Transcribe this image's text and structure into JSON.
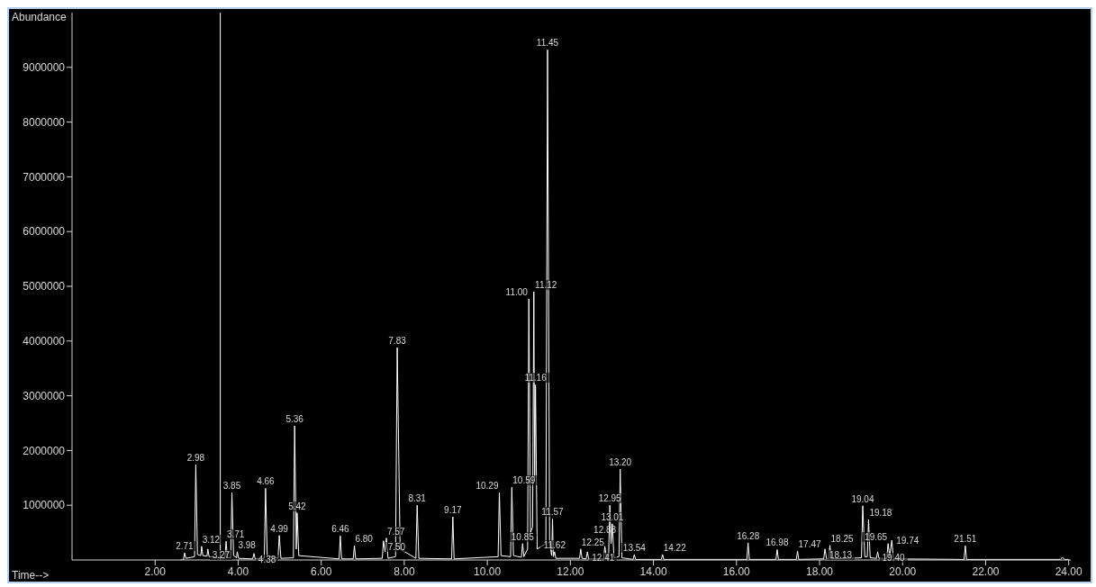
{
  "chart_data": {
    "type": "line",
    "xlabel": "Time-->",
    "ylabel": "Abundance",
    "marker": "none",
    "x": [
      2.6,
      2.68,
      2.71,
      2.74,
      2.95,
      2.98,
      3.02,
      3.1,
      3.12,
      3.15,
      3.25,
      3.27,
      3.3,
      3.68,
      3.71,
      3.74,
      3.82,
      3.85,
      3.89,
      3.96,
      3.98,
      4.01,
      4.35,
      4.38,
      4.41,
      4.63,
      4.66,
      4.7,
      4.96,
      4.99,
      5.03,
      5.33,
      5.36,
      5.4,
      5.42,
      5.46,
      6.43,
      6.46,
      6.49,
      6.77,
      6.8,
      6.83,
      7.47,
      7.5,
      7.54,
      7.57,
      7.61,
      7.79,
      7.83,
      7.9,
      8.28,
      8.31,
      8.35,
      9.14,
      9.17,
      9.2,
      10.26,
      10.29,
      10.33,
      10.56,
      10.59,
      10.63,
      10.82,
      10.85,
      10.88,
      10.97,
      11.0,
      11.04,
      11.09,
      11.12,
      11.14,
      11.16,
      11.2,
      11.41,
      11.45,
      11.5,
      11.55,
      11.57,
      11.59,
      11.62,
      11.65,
      12.22,
      12.25,
      12.28,
      12.38,
      12.41,
      12.44,
      12.8,
      12.83,
      12.87,
      12.92,
      12.95,
      12.98,
      13.01,
      13.05,
      13.17,
      13.2,
      13.24,
      13.51,
      13.54,
      13.57,
      14.19,
      14.22,
      14.25,
      16.25,
      16.28,
      16.31,
      16.95,
      16.98,
      17.01,
      17.44,
      17.47,
      17.5,
      18.1,
      18.13,
      18.17,
      18.22,
      18.25,
      18.28,
      19.01,
      19.04,
      19.09,
      19.15,
      19.18,
      19.22,
      19.37,
      19.4,
      19.43,
      19.62,
      19.65,
      19.69,
      19.74,
      19.78,
      21.48,
      21.51,
      21.54,
      23.8,
      23.85,
      23.9,
      24.0
    ],
    "series": [
      {
        "color": "#ffffff",
        "values": [
          0,
          0,
          130000,
          30000,
          60000,
          1740000,
          100000,
          80000,
          250000,
          80000,
          70000,
          200000,
          60000,
          30000,
          340000,
          40000,
          40000,
          1230000,
          80000,
          40000,
          150000,
          30000,
          20000,
          120000,
          20000,
          30000,
          1310000,
          80000,
          30000,
          450000,
          30000,
          40000,
          2450000,
          200000,
          860000,
          80000,
          20000,
          440000,
          20000,
          20000,
          260000,
          20000,
          30000,
          350000,
          150000,
          400000,
          30000,
          60000,
          3880000,
          200000,
          30000,
          1000000,
          30000,
          20000,
          790000,
          20000,
          60000,
          1230000,
          80000,
          60000,
          1330000,
          80000,
          50000,
          300000,
          60000,
          200000,
          4770000,
          500000,
          600000,
          4900000,
          1500000,
          3200000,
          200000,
          300000,
          9320000,
          300000,
          80000,
          750000,
          60000,
          150000,
          30000,
          30000,
          200000,
          30000,
          20000,
          150000,
          20000,
          20000,
          250000,
          40000,
          60000,
          1000000,
          300000,
          660000,
          40000,
          60000,
          1660000,
          40000,
          10000,
          100000,
          10000,
          10000,
          100000,
          10000,
          10000,
          310000,
          10000,
          10000,
          190000,
          10000,
          10000,
          160000,
          10000,
          20000,
          200000,
          20000,
          20000,
          270000,
          20000,
          40000,
          990000,
          60000,
          60000,
          740000,
          40000,
          30000,
          150000,
          30000,
          30000,
          300000,
          60000,
          360000,
          20000,
          10000,
          260000,
          10000,
          10000,
          50000,
          10000,
          10000
        ]
      }
    ],
    "xlim": [
      0,
      24.05
    ],
    "ylim": [
      0,
      10000000
    ],
    "xticks": [
      {
        "value": 2,
        "label": "2.00"
      },
      {
        "value": 4,
        "label": "4.00"
      },
      {
        "value": 6,
        "label": "6.00"
      },
      {
        "value": 8,
        "label": "8.00"
      },
      {
        "value": 10,
        "label": "10.00"
      },
      {
        "value": 12,
        "label": "12.00"
      },
      {
        "value": 14,
        "label": "14.00"
      },
      {
        "value": 16,
        "label": "16.00"
      },
      {
        "value": 18,
        "label": "18.00"
      },
      {
        "value": 20,
        "label": "20.00"
      },
      {
        "value": 22,
        "label": "22.00"
      },
      {
        "value": 24,
        "label": "24.00"
      }
    ],
    "yticks": [
      1000000,
      2000000,
      3000000,
      4000000,
      5000000,
      6000000,
      7000000,
      8000000,
      9000000
    ],
    "ref_lines": [
      {
        "axis": "x",
        "value": 3.57,
        "color": "#ffffff"
      }
    ],
    "annotations": [
      {
        "text": "2.71",
        "x": 2.71,
        "y": 130000
      },
      {
        "text": "2.98",
        "x": 2.98,
        "y": 1740000
      },
      {
        "text": "3.12",
        "x": 3.12,
        "y": 250000
      },
      {
        "text": "3.27",
        "x": 3.27,
        "y": 200000
      },
      {
        "text": "3.71",
        "x": 3.71,
        "y": 340000
      },
      {
        "text": "3.85",
        "x": 3.85,
        "y": 1230000
      },
      {
        "text": "3.98",
        "x": 3.98,
        "y": 150000
      },
      {
        "text": "4.38",
        "x": 4.38,
        "y": 120000
      },
      {
        "text": "4.66",
        "x": 4.66,
        "y": 1310000
      },
      {
        "text": "4.99",
        "x": 4.99,
        "y": 450000
      },
      {
        "text": "5.36",
        "x": 5.36,
        "y": 2450000
      },
      {
        "text": "5.42",
        "x": 5.42,
        "y": 860000
      },
      {
        "text": "6.46",
        "x": 6.46,
        "y": 440000
      },
      {
        "text": "6.80",
        "x": 6.8,
        "y": 260000
      },
      {
        "text": "7.50",
        "x": 7.5,
        "y": 350000
      },
      {
        "text": "7.57",
        "x": 7.57,
        "y": 400000
      },
      {
        "text": "7.83",
        "x": 7.83,
        "y": 3880000
      },
      {
        "text": "8.31",
        "x": 8.31,
        "y": 1000000
      },
      {
        "text": "9.17",
        "x": 9.17,
        "y": 790000
      },
      {
        "text": "10.29",
        "x": 10.29,
        "y": 1230000
      },
      {
        "text": "10.59",
        "x": 10.59,
        "y": 1330000
      },
      {
        "text": "10.85",
        "x": 10.85,
        "y": 300000
      },
      {
        "text": "11.00",
        "x": 11.0,
        "y": 4770000
      },
      {
        "text": "11.12",
        "x": 11.12,
        "y": 4900000
      },
      {
        "text": "11.16",
        "x": 11.16,
        "y": 3200000
      },
      {
        "text": "11.45",
        "x": 11.45,
        "y": 9320000
      },
      {
        "text": "11.57",
        "x": 11.57,
        "y": 750000
      },
      {
        "text": "11.62",
        "x": 11.62,
        "y": 150000
      },
      {
        "text": "12.25",
        "x": 12.25,
        "y": 200000
      },
      {
        "text": "12.41",
        "x": 12.41,
        "y": 150000
      },
      {
        "text": "12.83",
        "x": 12.83,
        "y": 250000
      },
      {
        "text": "12.95",
        "x": 12.95,
        "y": 1000000
      },
      {
        "text": "13.01",
        "x": 13.01,
        "y": 660000
      },
      {
        "text": "13.20",
        "x": 13.2,
        "y": 1660000
      },
      {
        "text": "13.54",
        "x": 13.54,
        "y": 100000
      },
      {
        "text": "14.22",
        "x": 14.22,
        "y": 100000
      },
      {
        "text": "16.28",
        "x": 16.28,
        "y": 310000
      },
      {
        "text": "16.98",
        "x": 16.98,
        "y": 190000
      },
      {
        "text": "17.47",
        "x": 17.47,
        "y": 160000
      },
      {
        "text": "18.13",
        "x": 18.13,
        "y": 200000
      },
      {
        "text": "18.25",
        "x": 18.25,
        "y": 270000
      },
      {
        "text": "19.04",
        "x": 19.04,
        "y": 990000
      },
      {
        "text": "19.18",
        "x": 19.18,
        "y": 740000
      },
      {
        "text": "19.40",
        "x": 19.4,
        "y": 150000
      },
      {
        "text": "19.65",
        "x": 19.65,
        "y": 300000
      },
      {
        "text": "19.74",
        "x": 19.74,
        "y": 360000
      },
      {
        "text": "21.51",
        "x": 21.51,
        "y": 260000
      }
    ]
  }
}
